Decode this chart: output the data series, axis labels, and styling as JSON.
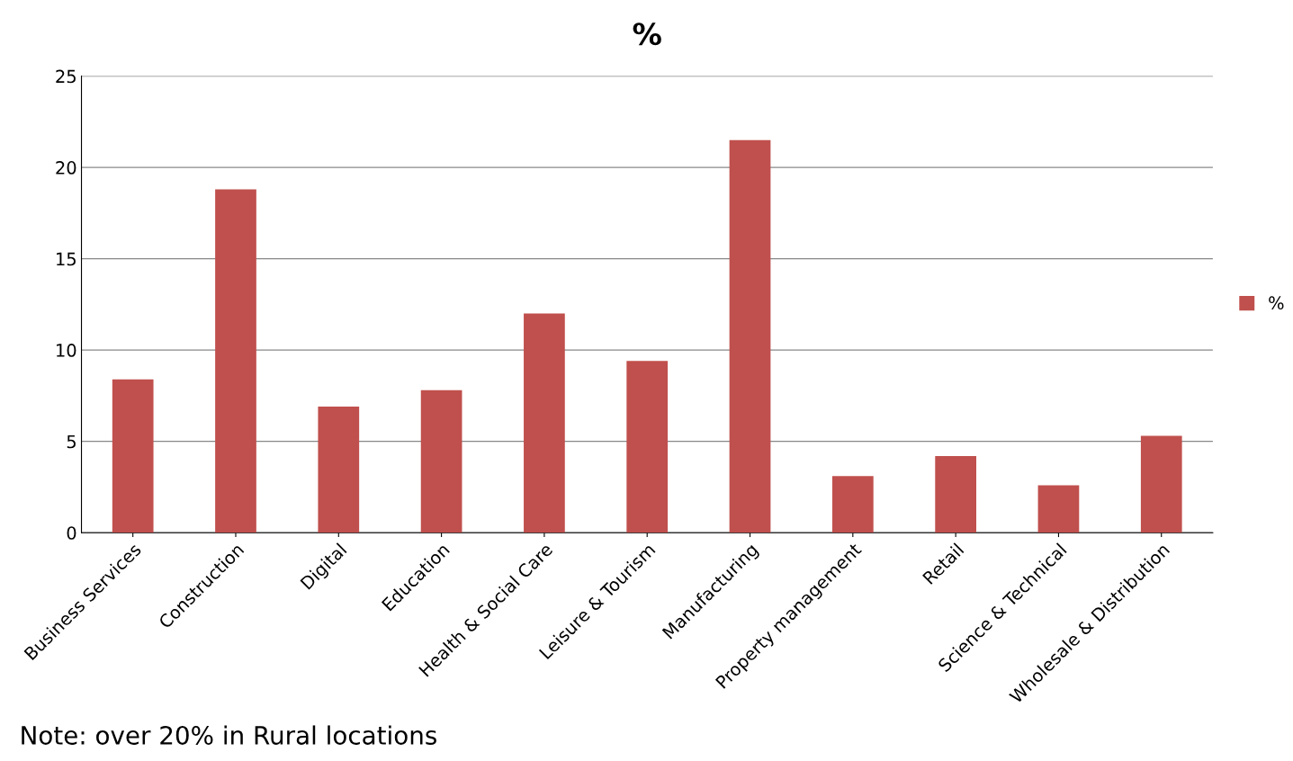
{
  "chart_data": {
    "type": "bar",
    "title": "%",
    "categories": [
      "Business Services",
      "Construction",
      "Digital",
      "Education",
      "Health & Social Care",
      "Leisure & Tourism",
      "Manufacturing",
      "Property management",
      "Retail",
      "Science & Technical",
      "Wholesale & Distribution"
    ],
    "series": [
      {
        "name": "%",
        "color": "#c0504d",
        "values": [
          8.4,
          18.8,
          6.9,
          7.8,
          12.0,
          9.4,
          21.5,
          3.1,
          4.2,
          2.6,
          5.3
        ]
      }
    ],
    "ylim": [
      0,
      25
    ],
    "yticks": [
      0,
      5,
      10,
      15,
      20,
      25
    ],
    "grid": "y",
    "legend": "right",
    "annotations": [
      "Note: over 20% in Rural locations"
    ]
  }
}
